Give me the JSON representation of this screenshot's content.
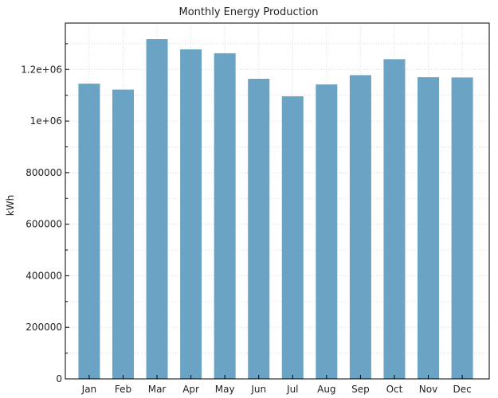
{
  "chart_data": {
    "type": "bar",
    "title": "Monthly Energy Production",
    "xlabel": "",
    "ylabel": "kWh",
    "categories": [
      "Jan",
      "Feb",
      "Mar",
      "Apr",
      "May",
      "Jun",
      "Jul",
      "Aug",
      "Sep",
      "Oct",
      "Nov",
      "Dec"
    ],
    "values": [
      1145000,
      1122000,
      1318000,
      1278000,
      1263000,
      1164000,
      1096000,
      1142000,
      1178000,
      1240000,
      1170000,
      1169000
    ],
    "ylim": [
      0,
      1380000
    ],
    "yticks": [
      0,
      200000,
      400000,
      600000,
      800000,
      1000000,
      1200000
    ],
    "ytick_labels": [
      "0",
      "200000",
      "400000",
      "600000",
      "800000",
      "1e+06",
      "1.2e+06"
    ],
    "grid": true,
    "bar_color": "#6aa3c4"
  }
}
